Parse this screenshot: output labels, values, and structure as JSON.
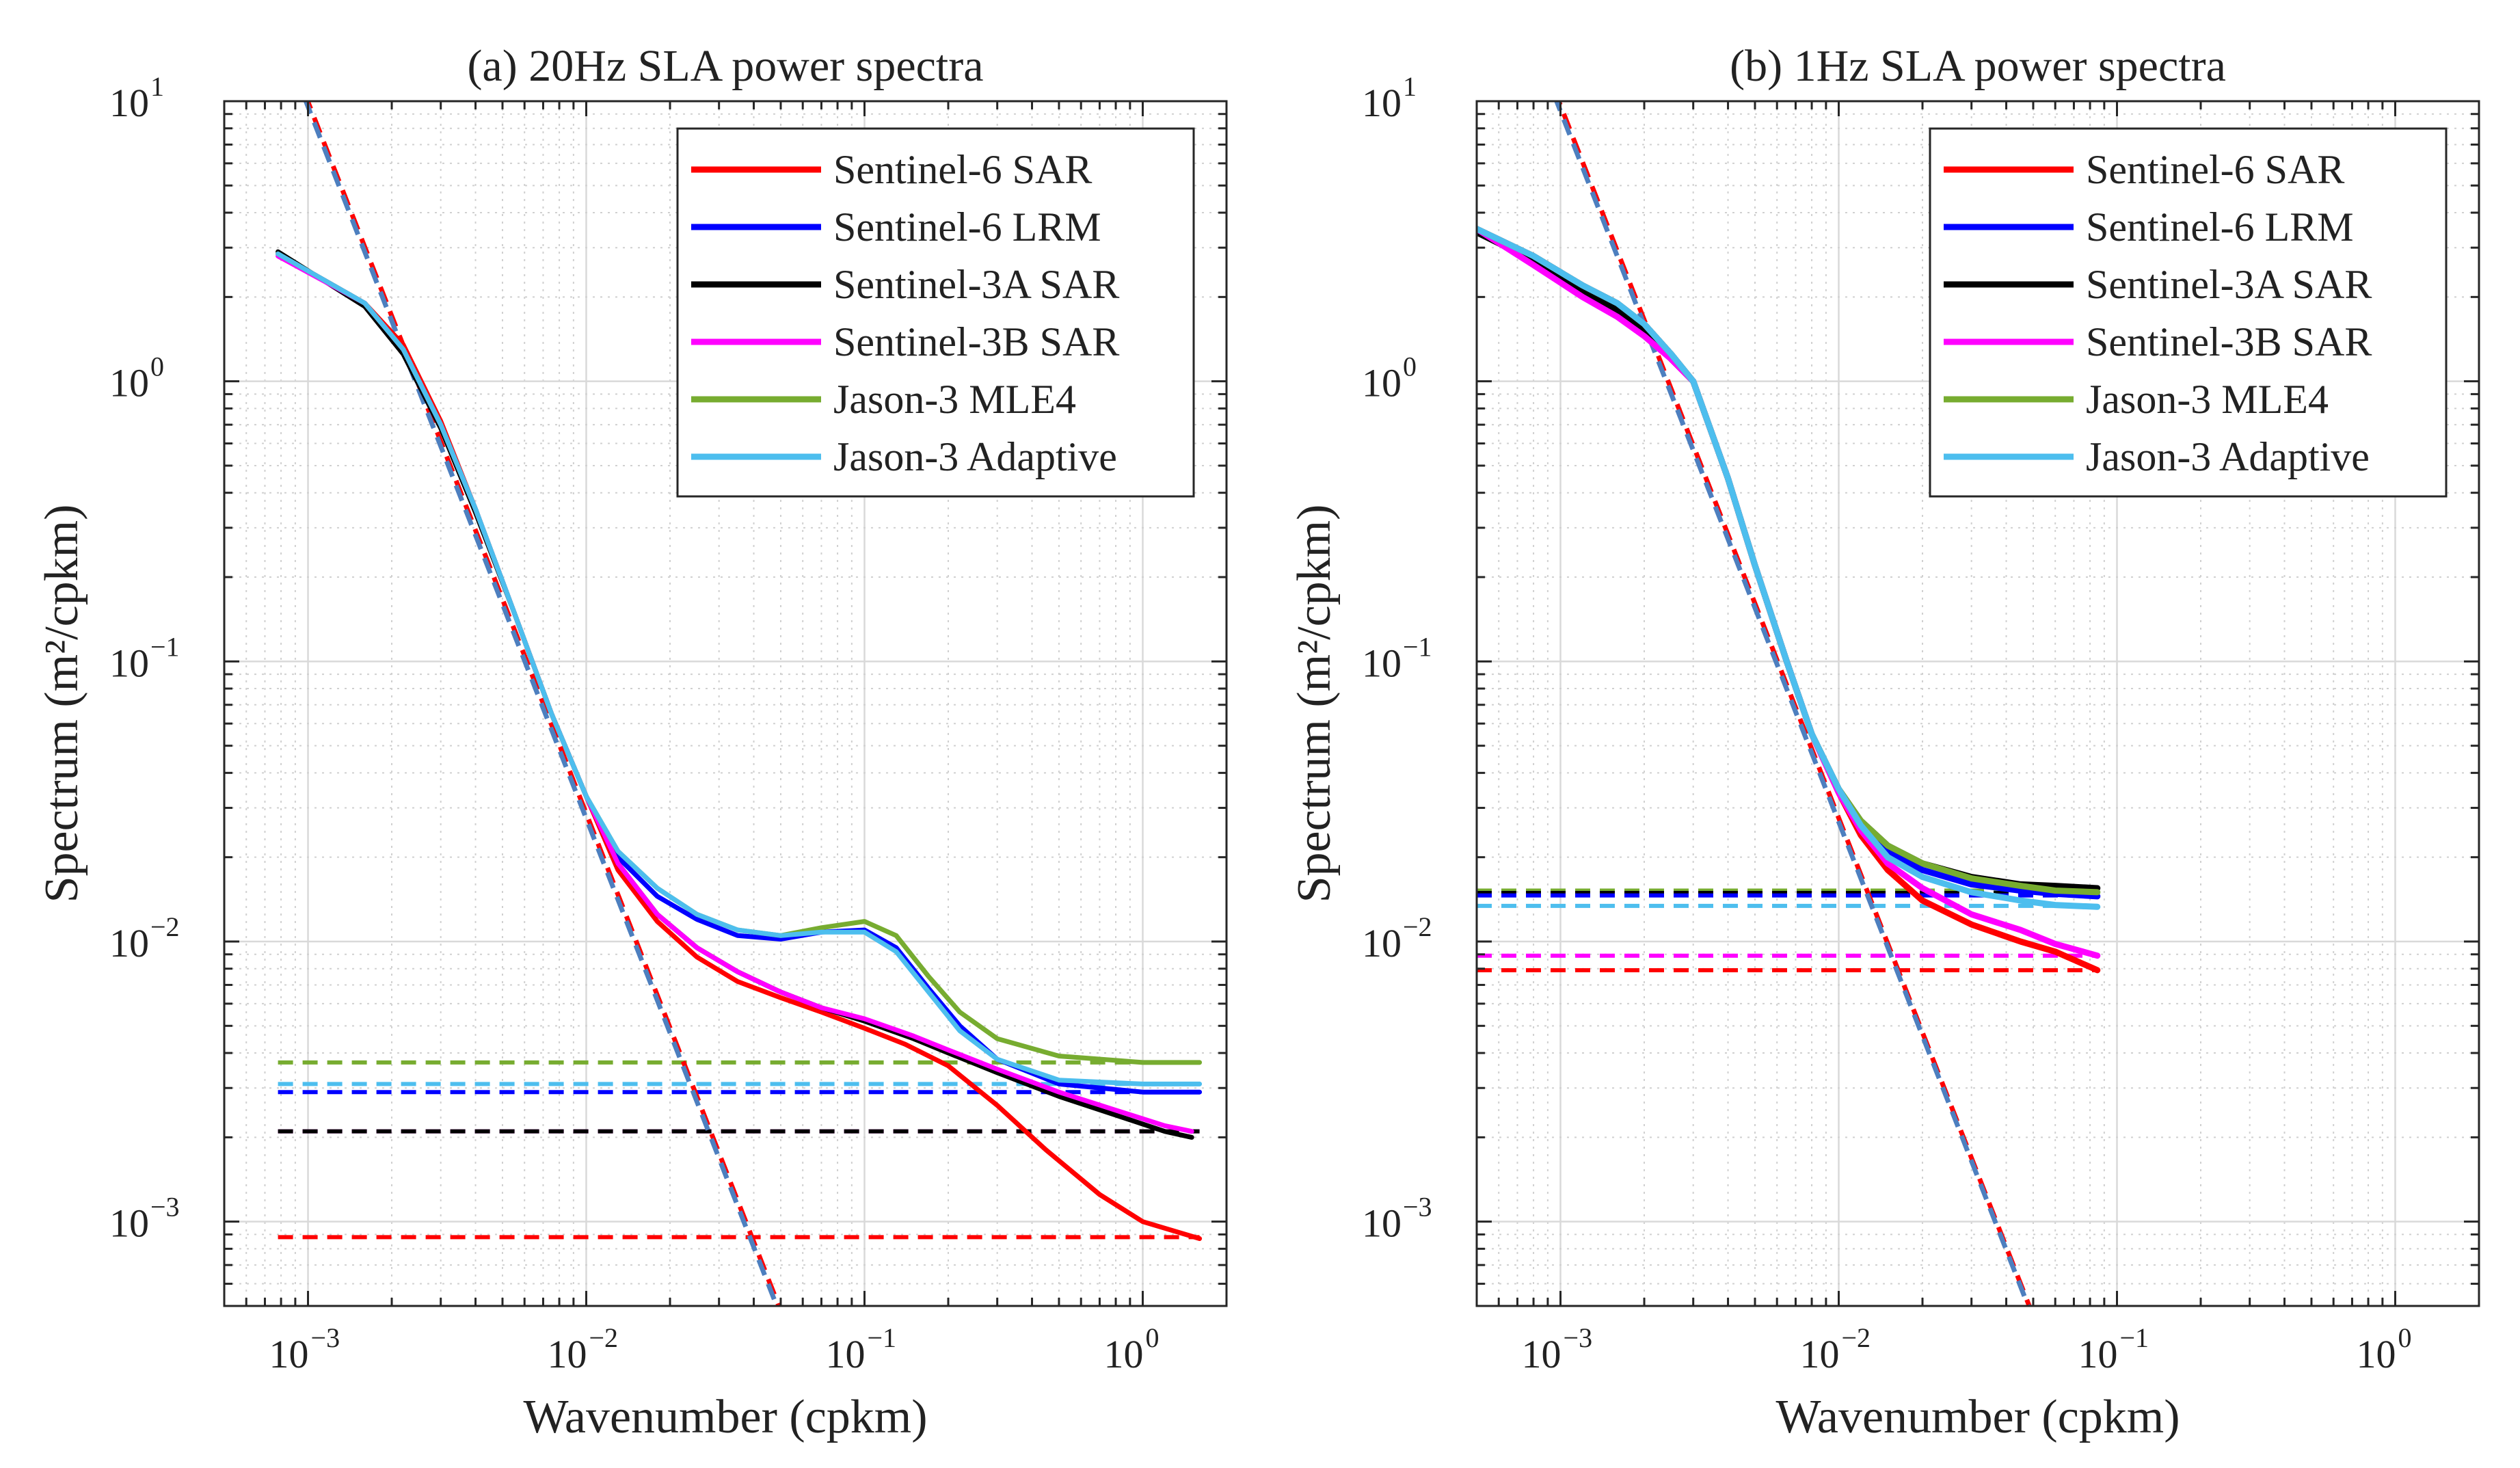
{
  "chart_data": [
    {
      "id": "a",
      "type": "line",
      "title": "(a) 20Hz SLA power spectra",
      "xlabel": "Wavenumber (cpkm)",
      "ylabel": "Spectrum (m²/cpkm)",
      "xscale": "log",
      "yscale": "log",
      "xlim": [
        0.0005,
        2.0
      ],
      "ylim": [
        0.0005,
        10
      ],
      "xticks": [
        {
          "base": "10",
          "exp": "−3",
          "value": 0.001
        },
        {
          "base": "10",
          "exp": "−2",
          "value": 0.01
        },
        {
          "base": "10",
          "exp": "−1",
          "value": 0.1
        },
        {
          "base": "10",
          "exp": "0",
          "value": 1
        }
      ],
      "yticks": [
        {
          "base": "10",
          "exp": "−3",
          "value": 0.001
        },
        {
          "base": "10",
          "exp": "−2",
          "value": 0.01
        },
        {
          "base": "10",
          "exp": "−1",
          "value": 0.1
        },
        {
          "base": "10",
          "exp": "0",
          "value": 1
        },
        {
          "base": "10",
          "exp": "1",
          "value": 10
        }
      ],
      "grid": true,
      "legend_position": "top-right",
      "series": [
        {
          "name": "Sentinel-6 SAR",
          "color": "#ff0000",
          "x": [
            0.00078,
            0.0016,
            0.0022,
            0.003,
            0.004,
            0.0055,
            0.0075,
            0.01,
            0.013,
            0.018,
            0.025,
            0.035,
            0.05,
            0.07,
            0.1,
            0.14,
            0.2,
            0.3,
            0.45,
            0.7,
            1.0,
            1.6
          ],
          "y": [
            2.85,
            1.9,
            1.35,
            0.72,
            0.35,
            0.15,
            0.065,
            0.033,
            0.018,
            0.0118,
            0.0088,
            0.0072,
            0.0063,
            0.0056,
            0.0049,
            0.0043,
            0.0036,
            0.0026,
            0.0018,
            0.00125,
            0.001,
            0.00087
          ]
        },
        {
          "name": "Sentinel-6 LRM",
          "color": "#0000ff",
          "x": [
            0.00078,
            0.0016,
            0.0022,
            0.003,
            0.004,
            0.0055,
            0.0075,
            0.01,
            0.013,
            0.018,
            0.025,
            0.035,
            0.05,
            0.07,
            0.1,
            0.13,
            0.17,
            0.22,
            0.3,
            0.5,
            1.0,
            1.6
          ],
          "y": [
            2.85,
            1.9,
            1.3,
            0.7,
            0.35,
            0.15,
            0.065,
            0.033,
            0.02,
            0.0145,
            0.012,
            0.0105,
            0.0102,
            0.0108,
            0.011,
            0.0095,
            0.0068,
            0.005,
            0.0038,
            0.0031,
            0.0029,
            0.0029
          ]
        },
        {
          "name": "Sentinel-3A SAR",
          "color": "#000000",
          "x": [
            0.00078,
            0.0016,
            0.0022,
            0.003,
            0.004,
            0.0055,
            0.0075,
            0.01,
            0.013,
            0.018,
            0.025,
            0.035,
            0.05,
            0.07,
            0.1,
            0.15,
            0.2,
            0.3,
            0.5,
            0.8,
            1.2,
            1.5
          ],
          "y": [
            2.9,
            1.85,
            1.25,
            0.68,
            0.34,
            0.15,
            0.065,
            0.033,
            0.019,
            0.0125,
            0.0095,
            0.0078,
            0.0066,
            0.0058,
            0.0052,
            0.0045,
            0.004,
            0.0034,
            0.0028,
            0.0024,
            0.0021,
            0.002
          ]
        },
        {
          "name": "Sentinel-3B SAR",
          "color": "#ff00ff",
          "x": [
            0.00078,
            0.0016,
            0.0022,
            0.003,
            0.004,
            0.0055,
            0.0075,
            0.01,
            0.013,
            0.018,
            0.025,
            0.035,
            0.05,
            0.07,
            0.1,
            0.15,
            0.2,
            0.3,
            0.5,
            0.8,
            1.2,
            1.5
          ],
          "y": [
            2.8,
            1.9,
            1.3,
            0.7,
            0.35,
            0.15,
            0.065,
            0.033,
            0.019,
            0.0125,
            0.0095,
            0.0078,
            0.0066,
            0.0058,
            0.0053,
            0.0046,
            0.0041,
            0.0035,
            0.0029,
            0.0025,
            0.0022,
            0.0021
          ]
        },
        {
          "name": "Jason-3 MLE4",
          "color": "#77ac30",
          "x": [
            0.00078,
            0.0016,
            0.0022,
            0.003,
            0.004,
            0.0055,
            0.0075,
            0.01,
            0.013,
            0.018,
            0.025,
            0.035,
            0.05,
            0.07,
            0.1,
            0.13,
            0.17,
            0.22,
            0.3,
            0.5,
            1.0,
            1.6
          ],
          "y": [
            2.85,
            1.9,
            1.3,
            0.7,
            0.35,
            0.15,
            0.065,
            0.033,
            0.021,
            0.0155,
            0.0125,
            0.011,
            0.0105,
            0.0112,
            0.0118,
            0.0105,
            0.0075,
            0.0056,
            0.0045,
            0.0039,
            0.0037,
            0.0037
          ]
        },
        {
          "name": "Jason-3 Adaptive",
          "color": "#4dbeee",
          "x": [
            0.00078,
            0.0016,
            0.0022,
            0.003,
            0.004,
            0.0055,
            0.0075,
            0.01,
            0.013,
            0.018,
            0.025,
            0.035,
            0.05,
            0.07,
            0.1,
            0.13,
            0.17,
            0.22,
            0.3,
            0.5,
            1.0,
            1.6
          ],
          "y": [
            2.85,
            1.9,
            1.3,
            0.7,
            0.35,
            0.15,
            0.065,
            0.033,
            0.021,
            0.0155,
            0.0125,
            0.011,
            0.0105,
            0.0108,
            0.0108,
            0.0092,
            0.0066,
            0.0048,
            0.0038,
            0.0032,
            0.0031,
            0.0031
          ]
        }
      ],
      "noise_floors": [
        {
          "series": "Jason-3 MLE4",
          "y": 0.0037,
          "xrange": [
            0.00078,
            1.6
          ],
          "color": "#77ac30"
        },
        {
          "series": "Jason-3 Adaptive",
          "y": 0.0031,
          "xrange": [
            0.00078,
            1.6
          ],
          "color": "#4dbeee"
        },
        {
          "series": "Sentinel-6 LRM",
          "y": 0.0029,
          "xrange": [
            0.00078,
            1.6
          ],
          "color": "#0000ff"
        },
        {
          "series": "Sentinel-3B SAR",
          "y": 0.0021,
          "xrange": [
            0.00078,
            1.6
          ],
          "color": "#ff00ff"
        },
        {
          "series": "Sentinel-3A SAR",
          "y": 0.0021,
          "xrange": [
            0.00078,
            1.6
          ],
          "color": "#000000"
        },
        {
          "series": "Sentinel-6 SAR",
          "y": 0.00088,
          "xrange": [
            0.00078,
            1.6
          ],
          "color": "#ff0000"
        }
      ],
      "power_law_fits": [
        {
          "color": "#ff0000",
          "x": [
            0.0009,
            0.05
          ],
          "y": [
            13.0,
            0.00048
          ]
        },
        {
          "color": "#4d7fbf",
          "x": [
            0.0009,
            0.05
          ],
          "y": [
            12.5,
            0.00046
          ]
        }
      ]
    },
    {
      "id": "b",
      "type": "line",
      "title": "(b) 1Hz SLA power spectra",
      "xlabel": "Wavenumber (cpkm)",
      "ylabel": "Spectrum (m²/cpkm)",
      "xscale": "log",
      "yscale": "log",
      "xlim": [
        0.0005,
        2.0
      ],
      "ylim": [
        0.0005,
        10
      ],
      "xticks": [
        {
          "base": "10",
          "exp": "−3",
          "value": 0.001
        },
        {
          "base": "10",
          "exp": "−2",
          "value": 0.01
        },
        {
          "base": "10",
          "exp": "−1",
          "value": 0.1
        },
        {
          "base": "10",
          "exp": "0",
          "value": 1
        }
      ],
      "yticks": [
        {
          "base": "10",
          "exp": "−3",
          "value": 0.001
        },
        {
          "base": "10",
          "exp": "−2",
          "value": 0.01
        },
        {
          "base": "10",
          "exp": "−1",
          "value": 0.1
        },
        {
          "base": "10",
          "exp": "0",
          "value": 1
        },
        {
          "base": "10",
          "exp": "1",
          "value": 10
        }
      ],
      "grid": true,
      "legend_position": "top-right",
      "series": [
        {
          "name": "Sentinel-6 SAR",
          "color": "#ff0000",
          "x": [
            0.0005,
            0.0008,
            0.0012,
            0.0016,
            0.002,
            0.0025,
            0.003,
            0.004,
            0.005,
            0.0065,
            0.008,
            0.01,
            0.012,
            0.015,
            0.02,
            0.03,
            0.045,
            0.06,
            0.085
          ],
          "y": [
            3.5,
            2.8,
            2.2,
            1.9,
            1.6,
            1.25,
            1.0,
            0.45,
            0.22,
            0.1,
            0.055,
            0.034,
            0.024,
            0.018,
            0.014,
            0.0115,
            0.01,
            0.0092,
            0.0079
          ]
        },
        {
          "name": "Sentinel-6 LRM",
          "color": "#0000ff",
          "x": [
            0.0005,
            0.0008,
            0.0012,
            0.0016,
            0.002,
            0.0025,
            0.003,
            0.004,
            0.005,
            0.0065,
            0.008,
            0.01,
            0.012,
            0.015,
            0.02,
            0.03,
            0.045,
            0.06,
            0.085
          ],
          "y": [
            3.5,
            2.8,
            2.2,
            1.9,
            1.6,
            1.25,
            1.0,
            0.45,
            0.22,
            0.1,
            0.055,
            0.035,
            0.026,
            0.021,
            0.018,
            0.016,
            0.0152,
            0.0148,
            0.0145
          ]
        },
        {
          "name": "Sentinel-3A SAR",
          "color": "#000000",
          "x": [
            0.0005,
            0.0008,
            0.0012,
            0.0016,
            0.002,
            0.0025,
            0.003,
            0.004,
            0.005,
            0.0065,
            0.008,
            0.01,
            0.012,
            0.015,
            0.02,
            0.03,
            0.045,
            0.06,
            0.085
          ],
          "y": [
            3.4,
            2.7,
            2.1,
            1.8,
            1.5,
            1.2,
            1.0,
            0.45,
            0.22,
            0.1,
            0.055,
            0.035,
            0.027,
            0.022,
            0.019,
            0.017,
            0.016,
            0.0158,
            0.0155
          ]
        },
        {
          "name": "Sentinel-3B SAR",
          "color": "#ff00ff",
          "x": [
            0.0005,
            0.0008,
            0.0012,
            0.0016,
            0.002,
            0.0025,
            0.003,
            0.004,
            0.005,
            0.0065,
            0.008,
            0.01,
            0.012,
            0.015,
            0.02,
            0.03,
            0.045,
            0.06,
            0.085
          ],
          "y": [
            3.5,
            2.6,
            2.0,
            1.7,
            1.45,
            1.2,
            1.0,
            0.45,
            0.22,
            0.1,
            0.055,
            0.034,
            0.025,
            0.019,
            0.0155,
            0.0125,
            0.011,
            0.0098,
            0.0089
          ]
        },
        {
          "name": "Jason-3 MLE4",
          "color": "#77ac30",
          "x": [
            0.0005,
            0.0008,
            0.0012,
            0.0016,
            0.002,
            0.0025,
            0.003,
            0.004,
            0.005,
            0.0065,
            0.008,
            0.01,
            0.012,
            0.015,
            0.02,
            0.03,
            0.045,
            0.06,
            0.085
          ],
          "y": [
            3.5,
            2.8,
            2.2,
            1.9,
            1.6,
            1.25,
            1.0,
            0.45,
            0.22,
            0.1,
            0.055,
            0.035,
            0.027,
            0.022,
            0.019,
            0.0168,
            0.0158,
            0.0152,
            0.015
          ]
        },
        {
          "name": "Jason-3 Adaptive",
          "color": "#4dbeee",
          "x": [
            0.0005,
            0.0008,
            0.0012,
            0.0016,
            0.002,
            0.0025,
            0.003,
            0.004,
            0.005,
            0.0065,
            0.008,
            0.01,
            0.012,
            0.015,
            0.02,
            0.03,
            0.045,
            0.06,
            0.085
          ],
          "y": [
            3.5,
            2.8,
            2.2,
            1.9,
            1.6,
            1.25,
            1.0,
            0.45,
            0.22,
            0.1,
            0.055,
            0.035,
            0.026,
            0.02,
            0.017,
            0.015,
            0.014,
            0.0135,
            0.0133
          ]
        }
      ],
      "noise_floors": [
        {
          "series": "Jason-3 MLE4",
          "y": 0.0152,
          "xrange": [
            0.0005,
            0.085
          ],
          "color": "#77ac30"
        },
        {
          "series": "Sentinel-3A SAR",
          "y": 0.0149,
          "xrange": [
            0.0005,
            0.085
          ],
          "color": "#000000"
        },
        {
          "series": "Sentinel-6 LRM",
          "y": 0.0146,
          "xrange": [
            0.0005,
            0.085
          ],
          "color": "#0000ff"
        },
        {
          "series": "Jason-3 Adaptive",
          "y": 0.0134,
          "xrange": [
            0.0005,
            0.085
          ],
          "color": "#4dbeee"
        },
        {
          "series": "Sentinel-3B SAR",
          "y": 0.0089,
          "xrange": [
            0.0005,
            0.085
          ],
          "color": "#ff00ff"
        },
        {
          "series": "Sentinel-6 SAR",
          "y": 0.0079,
          "xrange": [
            0.0005,
            0.085
          ],
          "color": "#ff0000"
        }
      ],
      "power_law_fits": [
        {
          "color": "#ff0000",
          "x": [
            0.00095,
            0.05
          ],
          "y": [
            11.0,
            0.00046
          ]
        },
        {
          "color": "#4d7fbf",
          "x": [
            0.00095,
            0.05
          ],
          "y": [
            10.5,
            0.00045
          ]
        }
      ]
    }
  ]
}
